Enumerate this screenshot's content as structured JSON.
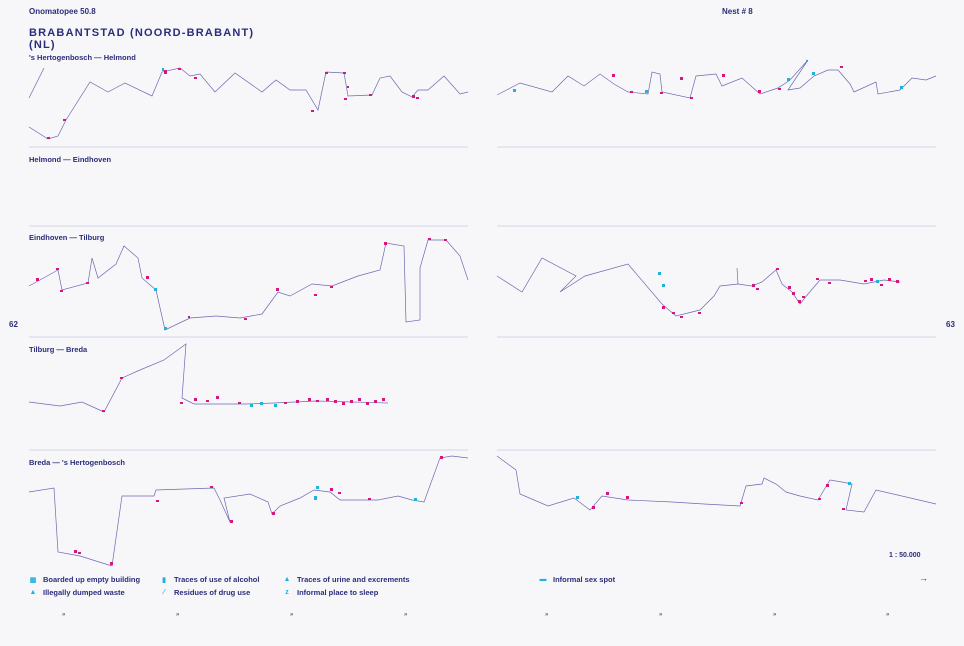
{
  "header": {
    "publication": "Onomatopee 50.8",
    "issue": "Nest # 8"
  },
  "title": {
    "line1": "BRABANTSTAD (NOORD-BRABANT)",
    "line2": "(NL)"
  },
  "page_numbers": {
    "left": "62",
    "right": "63"
  },
  "routes": [
    {
      "label": "'s Hertogenbosch — Helmond"
    },
    {
      "label": "Helmond — Eindhoven"
    },
    {
      "label": "Eindhoven — Tilburg"
    },
    {
      "label": "Tilburg — Breda"
    },
    {
      "label": "Breda — 's Hertogenbosch"
    }
  ],
  "scale": "1 : 50.000",
  "legend": [
    {
      "label": "Boarded up empty building",
      "icon": "boarded-building-icon",
      "glyph": "▦"
    },
    {
      "label": "Illegally dumped waste",
      "icon": "dumped-waste-icon",
      "glyph": "▲"
    },
    {
      "label": "Traces of use of alcohol",
      "icon": "alcohol-icon",
      "glyph": "▮"
    },
    {
      "label": "Residues of drug use",
      "icon": "drug-residue-icon",
      "glyph": "⁄"
    },
    {
      "label": "Traces of urine and excrements",
      "icon": "urine-icon",
      "glyph": "▲"
    },
    {
      "label": "Informal place to sleep",
      "icon": "sleep-place-icon",
      "glyph": "z"
    },
    {
      "label": "Informal sex spot",
      "icon": "sex-spot-icon",
      "glyph": "▬"
    }
  ],
  "arrow": "→",
  "ticks": [
    "»",
    "»",
    "»",
    "»",
    "»",
    "»",
    "»",
    "»"
  ],
  "colors": {
    "ink": "#2b2d7a",
    "marker_magenta": "#d6157f",
    "marker_cyan": "#1fb3dc",
    "rule": "#c8c8de"
  }
}
